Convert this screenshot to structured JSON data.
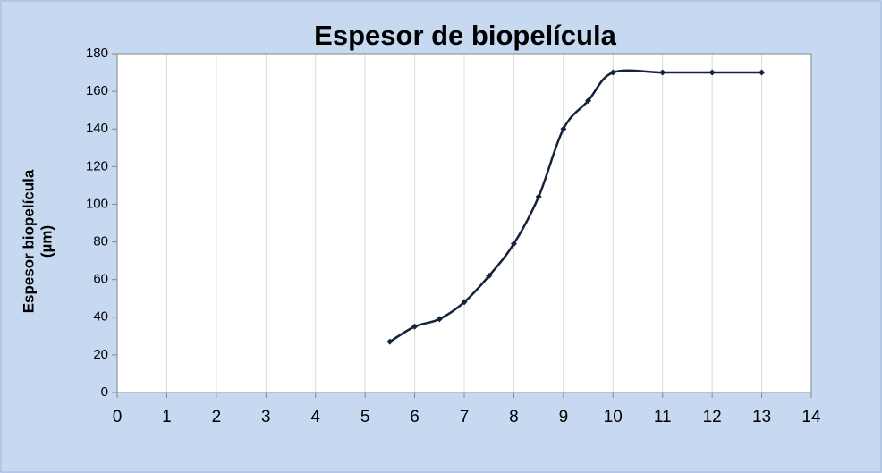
{
  "chart_data": {
    "type": "line",
    "title": "Espesor de biopelícula",
    "ylabel": [
      "Espesor biopelícula",
      "(µm)"
    ],
    "x": [
      5.5,
      6,
      6.5,
      7,
      7.5,
      8,
      8.5,
      9,
      9.5,
      10,
      11,
      12,
      13
    ],
    "series": [
      {
        "color": "#14233a",
        "values": [
          27,
          35,
          39,
          48,
          62,
          79,
          104,
          140,
          155,
          170,
          170,
          170,
          170
        ]
      }
    ],
    "xlim": [
      0,
      14
    ],
    "xticks": [
      0,
      1,
      2,
      3,
      4,
      5,
      6,
      7,
      8,
      9,
      10,
      11,
      12,
      13,
      14
    ],
    "ylim": [
      0,
      180
    ],
    "yticks": [
      0,
      20,
      40,
      60,
      80,
      100,
      120,
      140,
      160,
      180
    ],
    "xgrid": true,
    "smooth": true
  }
}
